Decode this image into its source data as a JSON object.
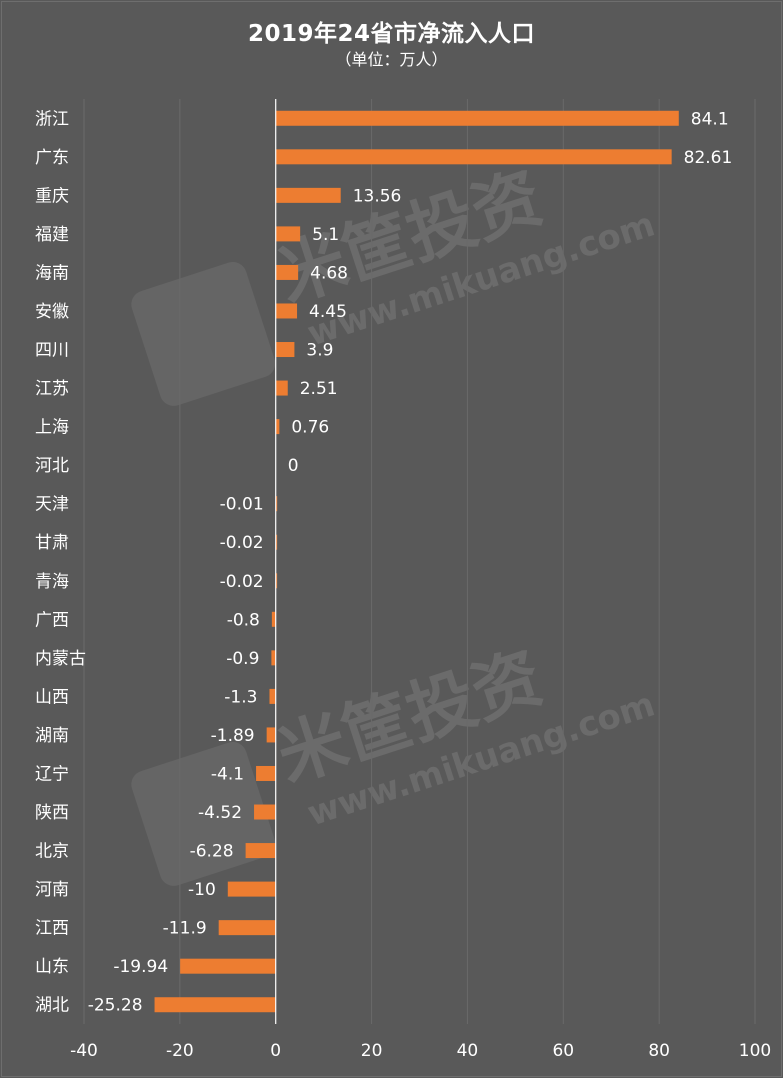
{
  "title": "2019年24省市净流入人口",
  "subtitle": "（单位：万人）",
  "watermark": {
    "brand": "米筐投资",
    "site": "www.mikuang.com"
  },
  "chart_data": {
    "type": "bar",
    "orientation": "horizontal",
    "title": "2019年24省市净流入人口",
    "subtitle": "（单位：万人）",
    "categories": [
      "浙江",
      "广东",
      "重庆",
      "福建",
      "海南",
      "安徽",
      "四川",
      "江苏",
      "上海",
      "河北",
      "天津",
      "甘肃",
      "青海",
      "广西",
      "内蒙古",
      "山西",
      "湖南",
      "辽宁",
      "陕西",
      "北京",
      "河南",
      "江西",
      "山东",
      "湖北"
    ],
    "value_labels": [
      "84.1",
      "82.61",
      "13.56",
      "5.1",
      "4.68",
      "4.45",
      "3.9",
      "2.51",
      "0.76",
      "0",
      "-0.01",
      "-0.02",
      "-0.02",
      "-0.8",
      "-0.9",
      "-1.3",
      "-1.89",
      "-4.1",
      "-4.52",
      "-6.28",
      "-10",
      "-11.9",
      "-19.94",
      "-25.28"
    ],
    "values": [
      84.1,
      82.61,
      13.56,
      5.1,
      4.68,
      4.45,
      3.9,
      2.51,
      0.76,
      0,
      -0.01,
      -0.02,
      -0.02,
      -0.8,
      -0.9,
      -1.3,
      -1.89,
      -4.1,
      -4.52,
      -6.28,
      -10,
      -11.9,
      -19.94,
      -25.28
    ],
    "xlim": [
      -40,
      100
    ],
    "xticks": [
      -40,
      -20,
      0,
      20,
      40,
      60,
      80,
      100
    ],
    "grid": true,
    "colors": {
      "bar": "#ed7d31",
      "background": "#595959",
      "text": "#ffffff"
    }
  }
}
